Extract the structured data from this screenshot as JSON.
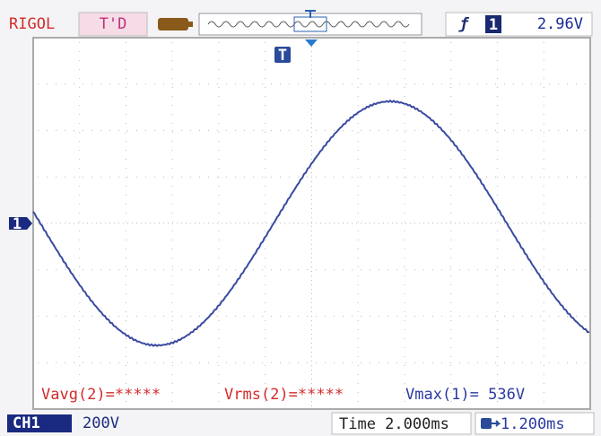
{
  "header": {
    "brand": "RIGOL",
    "status": "T'D",
    "trigger_source": "1",
    "trigger_level": "2.96V"
  },
  "screen": {
    "trigger_marker": "T",
    "channel_marker": "1"
  },
  "measurements": {
    "vavg": "Vavg(2)=*****",
    "vrms": "Vrms(2)=*****",
    "vmax": "Vmax(1)= 536V"
  },
  "footer": {
    "channel": "CH1",
    "scale": "200V",
    "timebase": "Time 2.000ms",
    "trigger_offset": "1.200ms"
  }
}
